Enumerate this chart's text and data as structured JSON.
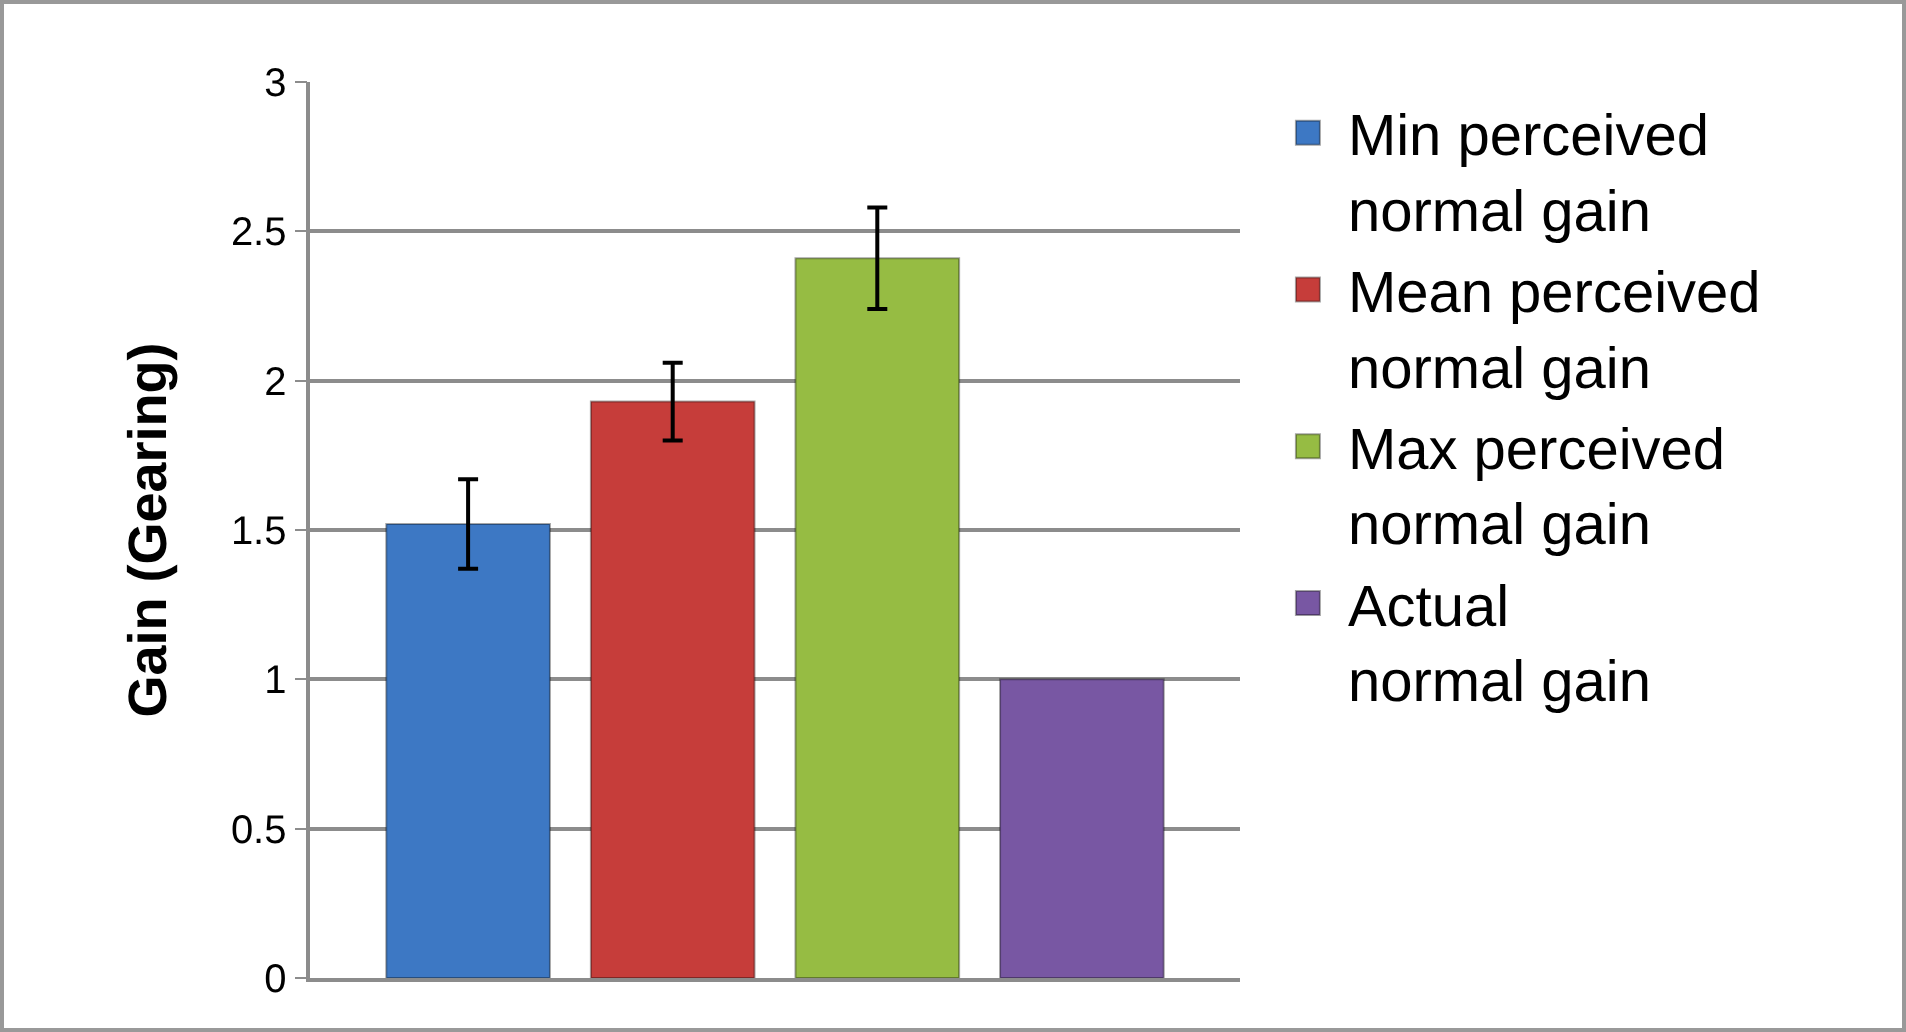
{
  "chart_data": {
    "type": "bar",
    "ylabel": "Gain (Gearing)",
    "categories": [
      null
    ],
    "series": [
      {
        "name": "Min perceived normal gain",
        "color": "#3d78c4",
        "values": [
          1.52
        ],
        "errors": [
          0.15
        ]
      },
      {
        "name": "Mean perceived normal gain",
        "color": "#c63d3a",
        "values": [
          1.93
        ],
        "errors": [
          0.13
        ]
      },
      {
        "name": "Max perceived normal gain",
        "color": "#96bc43",
        "values": [
          2.41
        ],
        "errors": [
          0.17
        ]
      },
      {
        "name": "Actual normal gain",
        "color": "#7857a3",
        "values": [
          1.0
        ]
      }
    ],
    "ylim": [
      0,
      3
    ],
    "yticks": [
      0,
      0.5,
      1,
      1.5,
      2,
      2.5,
      3
    ],
    "grid": "y",
    "legend": "right"
  }
}
